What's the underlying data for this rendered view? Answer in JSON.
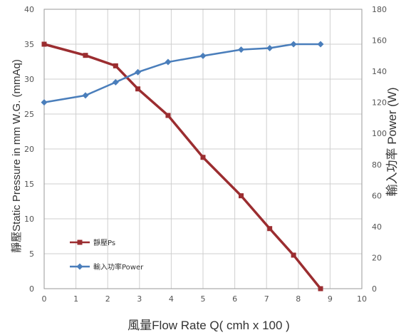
{
  "chart_data": {
    "type": "line",
    "xlabel": "風量Flow Rate Q( cmh x 100 )",
    "ylabel_left": "靜壓Static Pressure in mm W.G. (mmAq)",
    "ylabel_right": "輸入功率 Power (W)",
    "xlim": [
      0,
      10
    ],
    "ylim_left": [
      0,
      40
    ],
    "ylim_right": [
      0,
      180
    ],
    "x_ticks": [
      "0",
      "1",
      "2",
      "3",
      "4",
      "5",
      "6",
      "7",
      "8",
      "9",
      "10"
    ],
    "y_left_ticks": [
      "0",
      "5",
      "10",
      "15",
      "20",
      "25",
      "30",
      "35",
      "40"
    ],
    "y_right_ticks": [
      "0",
      "20",
      "40",
      "60",
      "80",
      "100",
      "120",
      "140",
      "160",
      "180"
    ],
    "grid": true,
    "legend_position": "bottom-left",
    "series": [
      {
        "name": "靜壓Ps",
        "axis": "left",
        "color": "#9b2d30",
        "marker": "square",
        "x": [
          0,
          1.3,
          2.25,
          2.95,
          3.9,
          5.0,
          6.2,
          7.1,
          7.85,
          8.7
        ],
        "y": [
          35.0,
          33.4,
          31.9,
          28.6,
          24.8,
          18.8,
          13.3,
          8.6,
          4.8,
          0.0
        ]
      },
      {
        "name": "輸入功率Power",
        "axis": "right",
        "color": "#4a7ebb",
        "marker": "diamond",
        "x": [
          0,
          1.3,
          2.25,
          2.95,
          3.9,
          5.0,
          6.2,
          7.1,
          7.85,
          8.7
        ],
        "y": [
          120,
          124.5,
          133,
          139.5,
          146,
          150,
          154,
          155,
          157.5,
          157.5
        ]
      }
    ]
  }
}
